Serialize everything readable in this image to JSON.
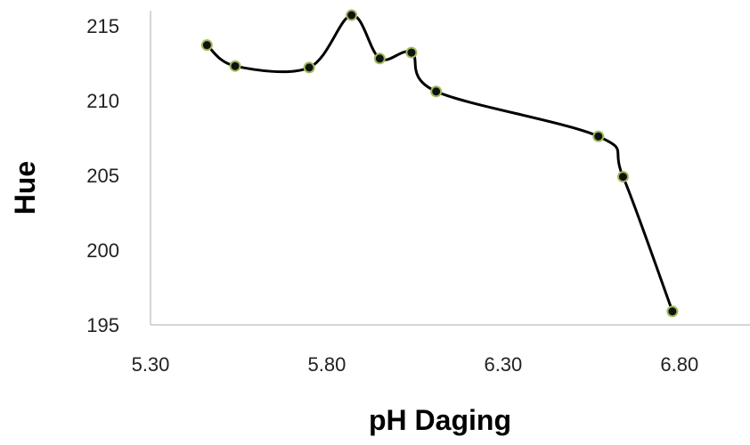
{
  "chart_data": {
    "type": "scatter",
    "title": "",
    "xlabel": "pH Daging",
    "ylabel": "Hue",
    "xlim": [
      5.3,
      7.0
    ],
    "ylim": [
      195,
      216
    ],
    "x_ticks": [
      "5.30",
      "5.80",
      "6.30",
      "6.80"
    ],
    "y_ticks": [
      "195",
      "200",
      "205",
      "210",
      "215"
    ],
    "x_tick_values": [
      5.3,
      5.8,
      6.3,
      6.8
    ],
    "y_tick_values": [
      195,
      200,
      205,
      210,
      215
    ],
    "grid": false,
    "legend": "none",
    "smooth_line": true,
    "series": [
      {
        "x": [
          5.46,
          5.54,
          5.75,
          5.87,
          5.95,
          6.04,
          6.11,
          6.57,
          6.64,
          6.78
        ],
        "y": [
          213.7,
          212.3,
          212.2,
          215.7,
          212.8,
          213.2,
          210.6,
          207.6,
          204.9,
          195.9
        ]
      }
    ],
    "colors": {
      "line": "#000000",
      "marker_fill": "#111111",
      "marker_edge": "#9bbb59",
      "axis": "#c8c8c8",
      "tick_text": "#222222",
      "title_text": "#000000"
    }
  }
}
